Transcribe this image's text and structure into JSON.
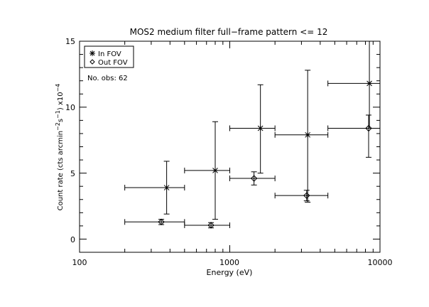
{
  "chart_data": {
    "type": "scatter",
    "title": "MOS2 medium filter full−frame pattern <= 12",
    "xlabel": "Energy (eV)",
    "ylabel_main": "Count rate (cts arcmin",
    "ylabel_exp1": "−2",
    "ylabel_mid": "s",
    "ylabel_exp2": "−1",
    "ylabel_tail": ") x10",
    "ylabel_exp3": "−4",
    "xscale": "log",
    "xlim": [
      100,
      10000
    ],
    "ylim": [
      -1,
      15
    ],
    "x_ticks": [
      "100",
      "1000",
      "10000"
    ],
    "y_ticks": [
      "0",
      "5",
      "10",
      "15"
    ],
    "legend": {
      "position": "top-left",
      "in_fov": "In FOV",
      "out_fov": "Out FOV",
      "note": "No. obs: 62"
    },
    "series": [
      {
        "name": "In FOV",
        "marker": "asterisk",
        "points": [
          {
            "x": 380,
            "xlo": 200,
            "xhi": 500,
            "y": 3.9,
            "ylo": 1.9,
            "yhi": 5.9
          },
          {
            "x": 800,
            "xlo": 500,
            "xhi": 1000,
            "y": 5.2,
            "ylo": 1.5,
            "yhi": 8.9
          },
          {
            "x": 1600,
            "xlo": 1000,
            "xhi": 2000,
            "y": 8.4,
            "ylo": 5.0,
            "yhi": 11.7
          },
          {
            "x": 3300,
            "xlo": 2000,
            "xhi": 4500,
            "y": 7.9,
            "ylo": 2.8,
            "yhi": 12.8
          },
          {
            "x": 8500,
            "xlo": 4500,
            "xhi": 10000,
            "y": 11.8,
            "ylo": 8.4,
            "yhi": 15.0
          }
        ]
      },
      {
        "name": "Out FOV",
        "marker": "diamond",
        "points": [
          {
            "x": 350,
            "xlo": 200,
            "xhi": 500,
            "y": 1.3,
            "ylo": 1.1,
            "yhi": 1.5
          },
          {
            "x": 750,
            "xlo": 500,
            "xhi": 1000,
            "y": 1.05,
            "ylo": 0.85,
            "yhi": 1.25
          },
          {
            "x": 1450,
            "xlo": 1000,
            "xhi": 2000,
            "y": 4.6,
            "ylo": 4.1,
            "yhi": 5.1
          },
          {
            "x": 3250,
            "xlo": 2000,
            "xhi": 4500,
            "y": 3.3,
            "ylo": 2.9,
            "yhi": 3.7
          },
          {
            "x": 8400,
            "xlo": 4500,
            "xhi": 10000,
            "y": 8.4,
            "ylo": 6.2,
            "yhi": 9.4
          }
        ]
      }
    ]
  }
}
